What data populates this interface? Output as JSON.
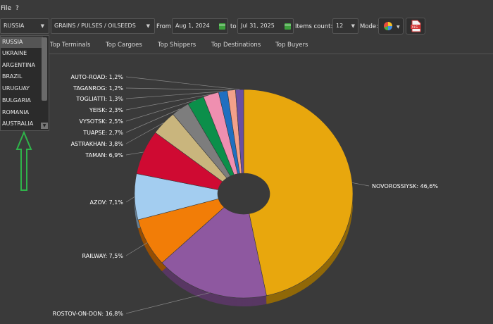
{
  "menu": {
    "file": "File",
    "help": "?"
  },
  "toolbar": {
    "country": "RUSSIA",
    "commodity": "GRAINS / PULSES / OILSEEDS",
    "from_label": "From",
    "from_date": "Aug 1, 2024",
    "to_label": "to",
    "to_date": "Jul 31, 2025",
    "items_label": "Items count:",
    "items_count": "12",
    "mode_label": "Mode:",
    "export_icon": "xls-file-icon",
    "mode_icon": "pie-chart-icon"
  },
  "tabs": [
    "Top Terminals",
    "Top Cargoes",
    "Top Shippers",
    "Top Destinations",
    "Top Buyers"
  ],
  "country_options": [
    "RUSSIA",
    "UKRAINE",
    "ARGENTINA",
    "BRAZIL",
    "URUGUAY",
    "BULGARIA",
    "ROMANIA",
    "AUSTRALIA"
  ],
  "chart_data": {
    "type": "pie",
    "donut": true,
    "slices": [
      {
        "label": "NOVOROSSIYSK",
        "value": 46.6,
        "text": "NOVOROSSIYSK: 46,6%",
        "color": "#e8a70d"
      },
      {
        "label": "ROSTOV-ON-DON",
        "value": 16.8,
        "text": "ROSTOV-ON-DON: 16,8%",
        "color": "#8e58a0"
      },
      {
        "label": "RAILWAY",
        "value": 7.5,
        "text": "RAILWAY: 7,5%",
        "color": "#f27d07"
      },
      {
        "label": "AZOV",
        "value": 7.1,
        "text": "AZOV: 7,1%",
        "color": "#a3cdf0"
      },
      {
        "label": "TAMAN",
        "value": 6.9,
        "text": "TAMAN: 6,9%",
        "color": "#cf0a32"
      },
      {
        "label": "ASTRAKHAN",
        "value": 3.8,
        "text": "ASTRAKHAN: 3,8%",
        "color": "#c9b57d"
      },
      {
        "label": "TUAPSE",
        "value": 2.7,
        "text": "TUAPSE: 2,7%",
        "color": "#7d7d7d"
      },
      {
        "label": "VYSOTSK",
        "value": 2.5,
        "text": "VYSOTSK: 2,5%",
        "color": "#0b8f4a"
      },
      {
        "label": "YEISK",
        "value": 2.3,
        "text": "YEISK: 2,3%",
        "color": "#ef8fb0"
      },
      {
        "label": "TOGLIATTI",
        "value": 1.3,
        "text": "TOGLIATTI: 1,3%",
        "color": "#1f6fc0"
      },
      {
        "label": "TAGANROG",
        "value": 1.2,
        "text": "TAGANROG: 1,2%",
        "color": "#f2a08a"
      },
      {
        "label": "AUTO-ROAD",
        "value": 1.2,
        "text": "AUTO-ROAD: 1,2%",
        "color": "#6a4fa3"
      }
    ]
  }
}
